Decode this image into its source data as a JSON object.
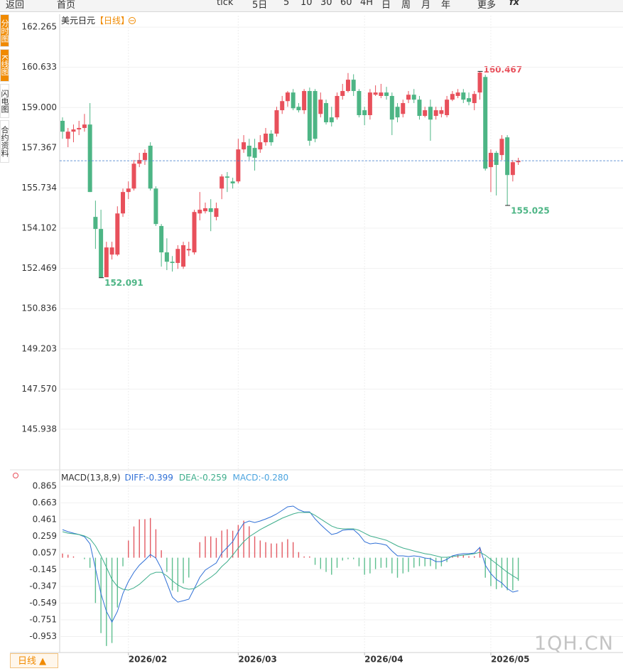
{
  "toolbar": [
    "返回",
    "首页",
    "tick",
    "5日",
    "5",
    "10",
    "30",
    "60",
    "4H",
    "日",
    "周",
    "月",
    "年",
    "更多",
    "fx"
  ],
  "sidebar": [
    "分时图",
    "K线图",
    "闪电图",
    "合约资料"
  ],
  "period_button": "日线 ▲",
  "watermark": "1QH.CN",
  "chart_data": [
    {
      "type": "candlestick",
      "title": "美元日元",
      "subtitle": "【日线】",
      "categories": [
        null,
        null,
        null,
        null,
        null,
        null,
        null,
        null,
        null,
        null,
        null,
        null,
        "2026/02",
        null,
        null,
        null,
        null,
        null,
        null,
        null,
        null,
        null,
        null,
        null,
        null,
        null,
        null,
        null,
        null,
        null,
        null,
        null,
        "2026/03",
        null,
        null,
        null,
        null,
        null,
        null,
        null,
        null,
        null,
        null,
        null,
        null,
        null,
        null,
        null,
        null,
        null,
        null,
        null,
        null,
        null,
        null,
        "2026/04",
        null,
        null,
        null,
        null,
        null,
        null,
        null,
        null,
        null,
        null,
        null,
        null,
        null,
        null,
        null,
        null,
        null,
        null,
        null,
        null,
        null,
        null,
        "2026/05",
        null,
        null,
        null,
        null,
        null
      ],
      "open": [
        158.46,
        157.73,
        158.02,
        158.11,
        158.17,
        158.31,
        154.56,
        154.07,
        152.11,
        153.03,
        153.03,
        154.7,
        155.57,
        155.71,
        156.72,
        156.87,
        157.45,
        155.71,
        154.19,
        153.12,
        152.74,
        152.69,
        152.54,
        153.2,
        153.12,
        154.7,
        154.79,
        154.91,
        154.56,
        155.71,
        156.2,
        156.0,
        156.0,
        157.3,
        157.45,
        157.36,
        157.3,
        157.59,
        157.94,
        157.94,
        158.89,
        159.26,
        159.61,
        159.03,
        158.89,
        159.67,
        159.67,
        158.74,
        159.18,
        158.6,
        158.6,
        159.47,
        159.67,
        160.13,
        159.67,
        158.89,
        158.69,
        159.52,
        159.47,
        159.61,
        159.47,
        159.03,
        158.74,
        159.32,
        159.52,
        159.32,
        158.66,
        159.03,
        158.66,
        158.74,
        158.69,
        159.32,
        159.47,
        159.61,
        159.38,
        159.18,
        159.61,
        160.24,
        156.58,
        157.16,
        157.07,
        157.79,
        156.26,
        156.78
      ],
      "high": [
        158.6,
        158.17,
        158.31,
        158.46,
        158.74,
        159.18,
        155.22,
        154.85,
        153.55,
        153.55,
        154.99,
        155.71,
        156.0,
        156.87,
        157.16,
        157.3,
        157.59,
        155.8,
        154.27,
        153.69,
        152.97,
        153.41,
        153.55,
        153.55,
        154.85,
        155.57,
        155.14,
        155.28,
        155.14,
        156.29,
        156.38,
        156.15,
        157.73,
        157.88,
        157.73,
        157.73,
        157.88,
        158.17,
        158.08,
        159.03,
        159.47,
        159.67,
        159.75,
        159.18,
        159.75,
        159.81,
        159.75,
        159.61,
        159.32,
        159.03,
        159.61,
        159.96,
        160.4,
        160.35,
        159.75,
        159.03,
        159.75,
        159.9,
        159.96,
        159.84,
        159.61,
        159.18,
        159.32,
        159.67,
        159.75,
        159.47,
        159.03,
        159.32,
        159.03,
        159.03,
        159.47,
        159.67,
        159.75,
        159.75,
        159.61,
        159.67,
        160.467,
        160.33,
        157.3,
        157.24,
        157.88,
        157.88,
        156.87,
        156.96
      ],
      "low": [
        157.73,
        157.39,
        157.59,
        157.88,
        158.02,
        155.57,
        153.26,
        152.091,
        152.11,
        152.83,
        152.97,
        154.56,
        155.28,
        155.63,
        156.58,
        156.67,
        155.63,
        154.19,
        152.54,
        152.4,
        152.34,
        152.45,
        152.45,
        152.97,
        153.03,
        154.42,
        154.7,
        153.98,
        154.42,
        155.28,
        155.57,
        155.71,
        155.92,
        157.16,
        156.87,
        156.44,
        157.16,
        157.45,
        157.45,
        157.82,
        158.74,
        159.03,
        158.89,
        158.8,
        158.74,
        157.45,
        157.59,
        158.6,
        158.31,
        158.23,
        158.51,
        159.32,
        159.61,
        159.47,
        158.6,
        158.28,
        158.51,
        159.47,
        159.38,
        159.32,
        157.88,
        158.4,
        158.6,
        159.18,
        159.18,
        158.51,
        158.6,
        157.65,
        158.51,
        158.6,
        158.6,
        159.26,
        159.38,
        159.18,
        159.09,
        158.89,
        159.32,
        156.44,
        155.57,
        155.43,
        156.87,
        155.025,
        156.0,
        156.67
      ],
      "close": [
        158.02,
        158.02,
        158.11,
        158.17,
        158.31,
        155.57,
        154.07,
        152.11,
        153.32,
        153.32,
        154.7,
        155.57,
        155.71,
        156.72,
        156.87,
        157.16,
        155.71,
        154.27,
        153.12,
        152.74,
        152.69,
        153.26,
        153.41,
        153.26,
        154.76,
        154.85,
        154.91,
        154.76,
        154.91,
        156.2,
        156.15,
        155.92,
        157.3,
        157.59,
        157.01,
        156.96,
        157.59,
        157.94,
        157.59,
        158.89,
        159.26,
        159.61,
        158.97,
        158.89,
        159.67,
        157.65,
        157.73,
        159.32,
        158.4,
        158.4,
        159.47,
        159.67,
        160.13,
        159.67,
        158.69,
        158.69,
        159.61,
        159.61,
        159.61,
        159.47,
        158.51,
        158.6,
        159.18,
        159.52,
        159.32,
        158.66,
        158.89,
        158.51,
        158.89,
        158.89,
        159.32,
        159.55,
        159.61,
        159.32,
        159.23,
        159.55,
        160.42,
        156.52,
        157.16,
        156.67,
        157.73,
        156.26,
        156.78,
        156.84
      ],
      "up_color": "#e8505b",
      "down_color": "#4db585",
      "ylim": [
        144.32,
        162.73
      ],
      "yticks": [
        162.265,
        160.633,
        {
          "value": 159,
          "label": "159.000"
        },
        157.367,
        155.734,
        154.102,
        152.469,
        150.836,
        149.203,
        {
          "value": 147.57,
          "label": "147.570"
        },
        145.938
      ],
      "grid": true
    },
    {
      "type": "macd",
      "title": "MACD(13,8,9)",
      "series": [
        {
          "name": "DIFF:",
          "type": "line",
          "color": "#2f6fd6",
          "values": [
            0.34,
            0.315,
            0.297,
            0.28,
            0.254,
            0.168,
            -0.131,
            -0.434,
            -0.649,
            -0.778,
            -0.649,
            -0.434,
            -0.287,
            -0.176,
            -0.09,
            -0.029,
            0.039,
            -0.004,
            -0.131,
            -0.305,
            -0.477,
            -0.537,
            -0.52,
            -0.502,
            -0.373,
            -0.236,
            -0.15,
            -0.107,
            -0.064,
            0.057,
            0.125,
            0.194,
            0.315,
            0.418,
            0.444,
            0.426,
            0.444,
            0.469,
            0.495,
            0.53,
            0.573,
            0.616,
            0.624,
            0.581,
            0.555,
            0.555,
            0.469,
            0.401,
            0.34,
            0.28,
            0.297,
            0.332,
            0.34,
            0.34,
            0.28,
            0.194,
            0.168,
            0.177,
            0.168,
            0.151,
            0.082,
            0.022,
            0.022,
            0.014,
            0.022,
            0.014,
            -0.004,
            -0.012,
            -0.047,
            -0.047,
            -0.021,
            0.022,
            0.039,
            0.048,
            0.048,
            0.057,
            0.125,
            -0.09,
            -0.193,
            -0.262,
            -0.305,
            -0.373,
            -0.416,
            -0.399
          ]
        },
        {
          "name": "DEA:",
          "type": "line",
          "color": "#3fae8c",
          "values": [
            0.315,
            0.297,
            0.289,
            0.28,
            0.263,
            0.229,
            0.143,
            0.022,
            -0.115,
            -0.262,
            -0.348,
            -0.382,
            -0.391,
            -0.365,
            -0.322,
            -0.262,
            -0.201,
            -0.176,
            -0.176,
            -0.219,
            -0.279,
            -0.33,
            -0.365,
            -0.382,
            -0.373,
            -0.33,
            -0.279,
            -0.236,
            -0.184,
            -0.107,
            -0.047,
            0.031,
            0.117,
            0.194,
            0.254,
            0.297,
            0.34,
            0.375,
            0.409,
            0.444,
            0.478,
            0.504,
            0.53,
            0.547,
            0.547,
            0.547,
            0.512,
            0.469,
            0.426,
            0.383,
            0.358,
            0.349,
            0.349,
            0.349,
            0.332,
            0.297,
            0.263,
            0.246,
            0.229,
            0.211,
            0.177,
            0.143,
            0.117,
            0.1,
            0.082,
            0.065,
            0.048,
            0.039,
            0.022,
            0.005,
            0.005,
            0.014,
            0.022,
            0.031,
            0.039,
            0.048,
            0.065,
            0.031,
            -0.021,
            -0.072,
            -0.124,
            -0.176,
            -0.219,
            -0.259
          ]
        },
        {
          "name": "MACD:",
          "type": "bar",
          "color": "#4aa3df",
          "up_color": "#e35a63",
          "down_color": "#5ebf8f",
          "values": [
            0.05,
            0.036,
            0.016,
            0,
            -0.018,
            -0.122,
            -0.548,
            -0.912,
            -1.068,
            -1.032,
            -0.602,
            -0.104,
            0.208,
            0.378,
            0.464,
            0.466,
            0.48,
            0.344,
            0.09,
            -0.172,
            -0.396,
            -0.414,
            -0.31,
            -0.24,
            0,
            0.188,
            0.258,
            0.258,
            0.24,
            0.328,
            0.344,
            0.326,
            0.396,
            0.448,
            0.38,
            0.258,
            0.208,
            0.188,
            0.172,
            0.172,
            0.19,
            0.224,
            0.188,
            0.068,
            0.016,
            0.016,
            -0.086,
            -0.136,
            -0.172,
            -0.206,
            -0.122,
            -0.034,
            -0.018,
            -0.018,
            -0.104,
            -0.206,
            -0.19,
            -0.138,
            -0.122,
            -0.12,
            -0.19,
            -0.242,
            -0.19,
            -0.172,
            -0.12,
            -0.102,
            -0.104,
            -0.102,
            -0.138,
            -0.104,
            -0.052,
            0.016,
            0.034,
            0.034,
            0.018,
            0.018,
            0.12,
            -0.242,
            -0.344,
            -0.38,
            -0.362,
            -0.394,
            -0.394,
            -0.28
          ],
          "value_labels": [
            null,
            null,
            null,
            null,
            null,
            null,
            null,
            null,
            null,
            null,
            null,
            null,
            null,
            null,
            null,
            null,
            null,
            null,
            null,
            null,
            null,
            null,
            null,
            null,
            null,
            null,
            null,
            null,
            null,
            null,
            null,
            null,
            null,
            null,
            null,
            null,
            null,
            null,
            null,
            null,
            null,
            null,
            null,
            null,
            null,
            null,
            null,
            null,
            null,
            null,
            null,
            null,
            null,
            null,
            null,
            null,
            null,
            null,
            null,
            null,
            null,
            null,
            null,
            null,
            null,
            null,
            null,
            null,
            null,
            null,
            null,
            null,
            null,
            null,
            null,
            null,
            null,
            null,
            null,
            null,
            null,
            null,
            null,
            "-0.280"
          ]
        }
      ],
      "ylim": [
        -1.147,
        1.037
      ],
      "yticks": [
        0.865,
        0.663,
        0.461,
        0.259,
        0.057,
        -0.145,
        -0.347,
        -0.549,
        -0.751,
        -0.953
      ],
      "grid": true
    }
  ]
}
